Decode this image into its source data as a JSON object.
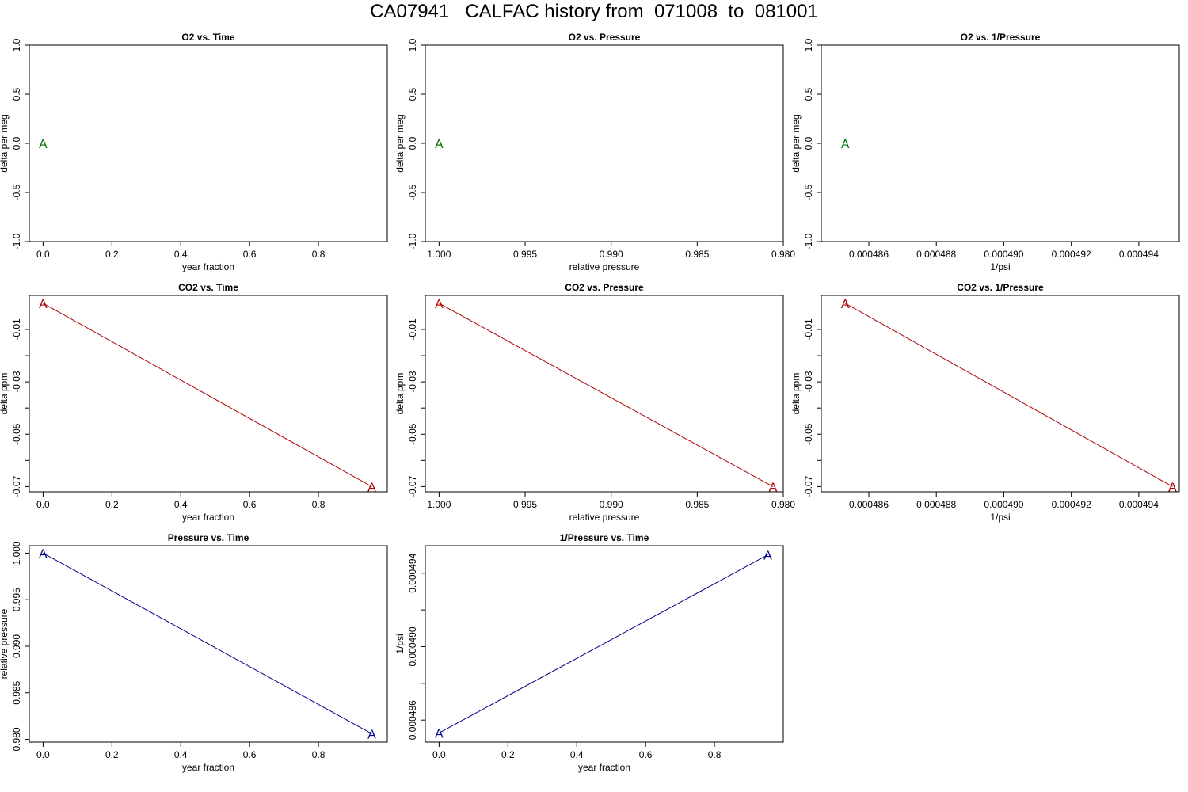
{
  "page_title": "CA07941   CALFAC history from  071008  to  081001",
  "colors": {
    "o2": "#007000",
    "co2": "#b00000",
    "pressure": "#00008b",
    "axis": "#000000"
  },
  "chart_data": [
    {
      "type": "line",
      "title": "O2 vs. Time",
      "xlabel": "year fraction",
      "ylabel": "delta per meg",
      "xlim": [
        0,
        1
      ],
      "ylim": [
        -1,
        1
      ],
      "xticks": [
        {
          "v": 0,
          "label": "0.0"
        },
        {
          "v": 0.2,
          "label": "0.2"
        },
        {
          "v": 0.4,
          "label": "0.4"
        },
        {
          "v": 0.6,
          "label": "0.6"
        },
        {
          "v": 0.8,
          "label": "0.8"
        }
      ],
      "yticks": [
        {
          "v": -1,
          "label": "-1.0"
        },
        {
          "v": -0.5,
          "label": "-0.5"
        },
        {
          "v": 0,
          "label": "0.0"
        },
        {
          "v": 0.5,
          "label": "0.5"
        },
        {
          "v": 1,
          "label": "1.0"
        }
      ],
      "series": [
        {
          "color_key": "o2",
          "marker": "A",
          "line": false,
          "points": [
            [
              0,
              0
            ]
          ]
        }
      ]
    },
    {
      "type": "line",
      "title": "O2 vs. Pressure",
      "xlabel": "relative pressure",
      "ylabel": "delta per meg",
      "xlim": [
        1.0,
        0.98
      ],
      "ylim": [
        -1,
        1
      ],
      "xticks": [
        {
          "v": 1.0,
          "label": "1.000"
        },
        {
          "v": 0.995,
          "label": "0.995"
        },
        {
          "v": 0.99,
          "label": "0.990"
        },
        {
          "v": 0.985,
          "label": "0.985"
        },
        {
          "v": 0.98,
          "label": "0.980"
        }
      ],
      "yticks": [
        {
          "v": -1,
          "label": "-1.0"
        },
        {
          "v": -0.5,
          "label": "-0.5"
        },
        {
          "v": 0,
          "label": "0.0"
        },
        {
          "v": 0.5,
          "label": "0.5"
        },
        {
          "v": 1,
          "label": "1.0"
        }
      ],
      "series": [
        {
          "color_key": "o2",
          "marker": "A",
          "line": false,
          "points": [
            [
              1.0,
              0
            ]
          ]
        }
      ]
    },
    {
      "type": "line",
      "title": "O2 vs. 1/Pressure",
      "xlabel": "1/psi",
      "ylabel": "delta per meg",
      "xlim": [
        0.000485,
        0.0004952
      ],
      "ylim": [
        -1,
        1
      ],
      "xticks": [
        {
          "v": 0.000486,
          "label": "0.000486"
        },
        {
          "v": 0.000488,
          "label": "0.000488"
        },
        {
          "v": 0.00049,
          "label": "0.000490"
        },
        {
          "v": 0.000492,
          "label": "0.000492"
        },
        {
          "v": 0.000494,
          "label": "0.000494"
        }
      ],
      "yticks": [
        {
          "v": -1,
          "label": "-1.0"
        },
        {
          "v": -0.5,
          "label": "-0.5"
        },
        {
          "v": 0,
          "label": "0.0"
        },
        {
          "v": 0.5,
          "label": "0.5"
        },
        {
          "v": 1,
          "label": "1.0"
        }
      ],
      "series": [
        {
          "color_key": "o2",
          "marker": "A",
          "line": false,
          "points": [
            [
              0.0004853,
              0
            ]
          ]
        }
      ]
    },
    {
      "type": "line",
      "title": "CO2 vs. Time",
      "xlabel": "year fraction",
      "ylabel": "delta ppm",
      "xlim": [
        0,
        1
      ],
      "ylim": [
        -0.072,
        0.003
      ],
      "xticks": [
        {
          "v": 0,
          "label": "0.0"
        },
        {
          "v": 0.2,
          "label": "0.2"
        },
        {
          "v": 0.4,
          "label": "0.4"
        },
        {
          "v": 0.6,
          "label": "0.6"
        },
        {
          "v": 0.8,
          "label": "0.8"
        }
      ],
      "yticks": [
        {
          "v": -0.07,
          "label": "-0.07"
        },
        {
          "v": -0.06,
          "label": ""
        },
        {
          "v": -0.05,
          "label": "-0.05"
        },
        {
          "v": -0.04,
          "label": ""
        },
        {
          "v": -0.03,
          "label": "-0.03"
        },
        {
          "v": -0.02,
          "label": ""
        },
        {
          "v": -0.01,
          "label": "-0.01"
        }
      ],
      "series": [
        {
          "color_key": "co2",
          "marker": "A",
          "line": true,
          "points": [
            [
              0,
              0
            ],
            [
              0.955,
              -0.07
            ]
          ]
        }
      ]
    },
    {
      "type": "line",
      "title": "CO2 vs. Pressure",
      "xlabel": "relative pressure",
      "ylabel": "delta ppm",
      "xlim": [
        1.0,
        0.98
      ],
      "ylim": [
        -0.072,
        0.003
      ],
      "xticks": [
        {
          "v": 1.0,
          "label": "1.000"
        },
        {
          "v": 0.995,
          "label": "0.995"
        },
        {
          "v": 0.99,
          "label": "0.990"
        },
        {
          "v": 0.985,
          "label": "0.985"
        },
        {
          "v": 0.98,
          "label": "0.980"
        }
      ],
      "yticks": [
        {
          "v": -0.07,
          "label": "-0.07"
        },
        {
          "v": -0.06,
          "label": ""
        },
        {
          "v": -0.05,
          "label": "-0.05"
        },
        {
          "v": -0.04,
          "label": ""
        },
        {
          "v": -0.03,
          "label": "-0.03"
        },
        {
          "v": -0.02,
          "label": ""
        },
        {
          "v": -0.01,
          "label": "-0.01"
        }
      ],
      "series": [
        {
          "color_key": "co2",
          "marker": "A",
          "line": true,
          "points": [
            [
              1.0,
              0
            ],
            [
              0.9806,
              -0.07
            ]
          ]
        }
      ]
    },
    {
      "type": "line",
      "title": "CO2 vs. 1/Pressure",
      "xlabel": "1/psi",
      "ylabel": "delta ppm",
      "xlim": [
        0.000485,
        0.0004952
      ],
      "ylim": [
        -0.072,
        0.003
      ],
      "xticks": [
        {
          "v": 0.000486,
          "label": "0.000486"
        },
        {
          "v": 0.000488,
          "label": "0.000488"
        },
        {
          "v": 0.00049,
          "label": "0.000490"
        },
        {
          "v": 0.000492,
          "label": "0.000492"
        },
        {
          "v": 0.000494,
          "label": "0.000494"
        }
      ],
      "yticks": [
        {
          "v": -0.07,
          "label": "-0.07"
        },
        {
          "v": -0.06,
          "label": ""
        },
        {
          "v": -0.05,
          "label": "-0.05"
        },
        {
          "v": -0.04,
          "label": ""
        },
        {
          "v": -0.03,
          "label": "-0.03"
        },
        {
          "v": -0.02,
          "label": ""
        },
        {
          "v": -0.01,
          "label": "-0.01"
        }
      ],
      "series": [
        {
          "color_key": "co2",
          "marker": "A",
          "line": true,
          "points": [
            [
              0.0004853,
              0
            ],
            [
              0.000495,
              -0.07
            ]
          ]
        }
      ]
    },
    {
      "type": "line",
      "title": "Pressure vs. Time",
      "xlabel": "year fraction",
      "ylabel": "relative pressure",
      "xlim": [
        0,
        1
      ],
      "ylim": [
        0.9797,
        1.0008
      ],
      "xticks": [
        {
          "v": 0,
          "label": "0.0"
        },
        {
          "v": 0.2,
          "label": "0.2"
        },
        {
          "v": 0.4,
          "label": "0.4"
        },
        {
          "v": 0.6,
          "label": "0.6"
        },
        {
          "v": 0.8,
          "label": "0.8"
        }
      ],
      "yticks": [
        {
          "v": 0.98,
          "label": "0.980"
        },
        {
          "v": 0.985,
          "label": "0.985"
        },
        {
          "v": 0.99,
          "label": "0.990"
        },
        {
          "v": 0.995,
          "label": "0.995"
        },
        {
          "v": 1.0,
          "label": "1.000"
        }
      ],
      "series": [
        {
          "color_key": "pressure",
          "marker": "A",
          "line": true,
          "points": [
            [
              0,
              1.0
            ],
            [
              0.955,
              0.9806
            ]
          ]
        }
      ]
    },
    {
      "type": "line",
      "title": "1/Pressure vs. Time",
      "xlabel": "year fraction",
      "ylabel": "1/psi",
      "xlim": [
        0,
        1
      ],
      "ylim": [
        0.0004848,
        0.0004955
      ],
      "xticks": [
        {
          "v": 0,
          "label": "0.0"
        },
        {
          "v": 0.2,
          "label": "0.2"
        },
        {
          "v": 0.4,
          "label": "0.4"
        },
        {
          "v": 0.6,
          "label": "0.6"
        },
        {
          "v": 0.8,
          "label": "0.8"
        }
      ],
      "yticks": [
        {
          "v": 0.000486,
          "label": "0.000486"
        },
        {
          "v": 0.000488,
          "label": ""
        },
        {
          "v": 0.00049,
          "label": "0.000490"
        },
        {
          "v": 0.000492,
          "label": ""
        },
        {
          "v": 0.000494,
          "label": "0.000494"
        }
      ],
      "series": [
        {
          "color_key": "pressure",
          "marker": "A",
          "line": true,
          "points": [
            [
              0,
              0.0004853
            ],
            [
              0.955,
              0.000495
            ]
          ]
        }
      ]
    }
  ]
}
